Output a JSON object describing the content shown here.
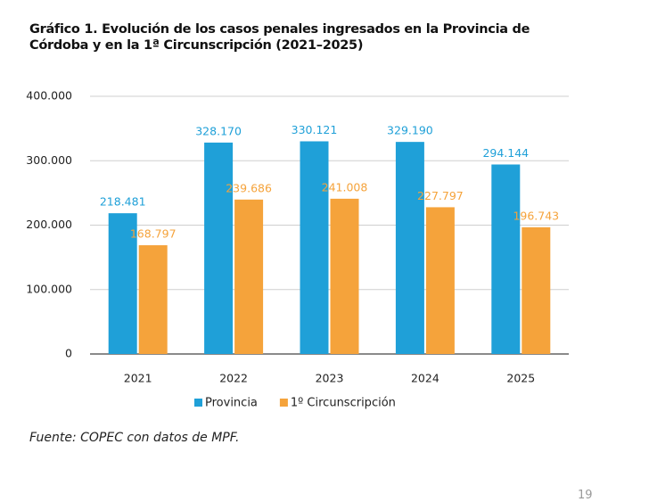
{
  "chart_data": {
    "type": "bar",
    "title": "Gráfico 1. Evolución de los casos penales ingresados en la Provincia de Córdoba y en la 1ª Circunscripción (2021–2025)",
    "categories": [
      "2021",
      "2022",
      "2023",
      "2024",
      "2025"
    ],
    "series": [
      {
        "name": "Provincia",
        "color": "#1fa0d8",
        "values": [
          218481,
          328170,
          330121,
          329190,
          294144
        ],
        "value_labels": [
          "218.481",
          "328.170",
          "330.121",
          "329.190",
          "294.144"
        ]
      },
      {
        "name": "1º Circunscripción",
        "color": "#f5a33b",
        "values": [
          168797,
          239686,
          241008,
          227797,
          196743
        ],
        "value_labels": [
          "168.797",
          "239.686",
          "241.008",
          "227.797",
          "196.743"
        ]
      }
    ],
    "ylim": [
      0,
      400000
    ],
    "yticks": [
      0,
      {
        "value": 100000,
        "label": "100.000"
      },
      {
        "value": 200000,
        "label": "200.000"
      },
      {
        "value": 300000,
        "label": "300.000"
      },
      {
        "value": 400000,
        "label": "400.000"
      }
    ],
    "grid": true,
    "legend": "bottom"
  },
  "source": "Fuente: COPEC con datos de MPF.",
  "page_number": "19"
}
